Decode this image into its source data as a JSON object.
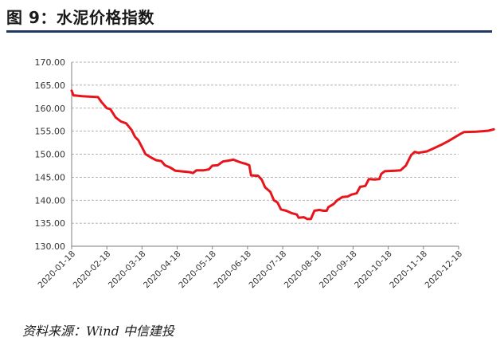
{
  "header": {
    "title": "图 9：水泥价格指数"
  },
  "footer": {
    "source": "资料来源：Wind 中信建投"
  },
  "chart_data": {
    "type": "line",
    "title": "",
    "xlabel": "",
    "ylabel": "",
    "ylim": [
      130,
      170
    ],
    "yticks": [
      "170.00",
      "165.00",
      "160.00",
      "155.00",
      "150.00",
      "145.00",
      "140.00",
      "135.00",
      "130.00"
    ],
    "xticks": [
      "2020-01-18",
      "2020-02-18",
      "2020-03-18",
      "2020-04-18",
      "2020-05-18",
      "2020-06-18",
      "2020-07-18",
      "2020-08-18",
      "2020-09-18",
      "2020-10-18",
      "2020-11-18",
      "2020-12-18"
    ],
    "grid": "horizontal-dashed",
    "series_color": "#e8141b",
    "series": [
      {
        "values": [
          [
            0,
            163.8
          ],
          [
            0.05,
            162.8
          ],
          [
            0.3,
            162.6
          ],
          [
            0.75,
            162.4
          ],
          [
            0.85,
            161.3
          ],
          [
            1.0,
            160.0
          ],
          [
            1.1,
            159.8
          ],
          [
            1.25,
            158.0
          ],
          [
            1.4,
            157.1
          ],
          [
            1.55,
            156.7
          ],
          [
            1.7,
            155.3
          ],
          [
            1.8,
            153.8
          ],
          [
            1.9,
            153.0
          ],
          [
            2.0,
            151.5
          ],
          [
            2.1,
            150.0
          ],
          [
            2.25,
            149.3
          ],
          [
            2.4,
            148.7
          ],
          [
            2.55,
            148.5
          ],
          [
            2.65,
            147.6
          ],
          [
            2.8,
            147.1
          ],
          [
            2.95,
            146.4
          ],
          [
            3.2,
            146.2
          ],
          [
            3.35,
            146.1
          ],
          [
            3.45,
            145.9
          ],
          [
            3.55,
            146.5
          ],
          [
            3.75,
            146.5
          ],
          [
            3.9,
            146.7
          ],
          [
            4.0,
            147.5
          ],
          [
            4.15,
            147.6
          ],
          [
            4.3,
            148.4
          ],
          [
            4.45,
            148.6
          ],
          [
            4.6,
            148.8
          ],
          [
            4.7,
            148.5
          ],
          [
            4.85,
            148.1
          ],
          [
            4.95,
            147.9
          ],
          [
            5.05,
            147.6
          ],
          [
            5.1,
            145.4
          ],
          [
            5.3,
            145.3
          ],
          [
            5.4,
            144.5
          ],
          [
            5.5,
            142.8
          ],
          [
            5.65,
            141.8
          ],
          [
            5.75,
            140.0
          ],
          [
            5.85,
            139.5
          ],
          [
            5.95,
            138.0
          ],
          [
            6.1,
            137.7
          ],
          [
            6.25,
            137.2
          ],
          [
            6.4,
            136.9
          ],
          [
            6.45,
            136.2
          ],
          [
            6.6,
            136.3
          ],
          [
            6.7,
            135.9
          ],
          [
            6.8,
            135.9
          ],
          [
            6.9,
            137.7
          ],
          [
            7.05,
            137.9
          ],
          [
            7.15,
            137.7
          ],
          [
            7.25,
            137.7
          ],
          [
            7.3,
            138.5
          ],
          [
            7.45,
            139.2
          ],
          [
            7.55,
            140.0
          ],
          [
            7.7,
            140.7
          ],
          [
            7.85,
            140.8
          ],
          [
            7.95,
            141.2
          ],
          [
            8.1,
            141.5
          ],
          [
            8.2,
            142.9
          ],
          [
            8.35,
            143.1
          ],
          [
            8.45,
            144.6
          ],
          [
            8.6,
            144.5
          ],
          [
            8.75,
            144.6
          ],
          [
            8.8,
            145.7
          ],
          [
            8.9,
            146.3
          ],
          [
            9.2,
            146.4
          ],
          [
            9.35,
            146.5
          ],
          [
            9.5,
            147.5
          ],
          [
            9.65,
            149.8
          ],
          [
            9.75,
            150.5
          ],
          [
            9.85,
            150.3
          ],
          [
            10.1,
            150.6
          ],
          [
            10.3,
            151.3
          ],
          [
            10.5,
            152.0
          ],
          [
            10.7,
            152.8
          ],
          [
            10.9,
            153.7
          ],
          [
            11.05,
            154.4
          ],
          [
            11.15,
            154.8
          ],
          [
            11.5,
            154.9
          ],
          [
            11.7,
            155.0
          ],
          [
            11.85,
            155.1
          ],
          [
            12.0,
            155.4
          ]
        ]
      }
    ]
  }
}
